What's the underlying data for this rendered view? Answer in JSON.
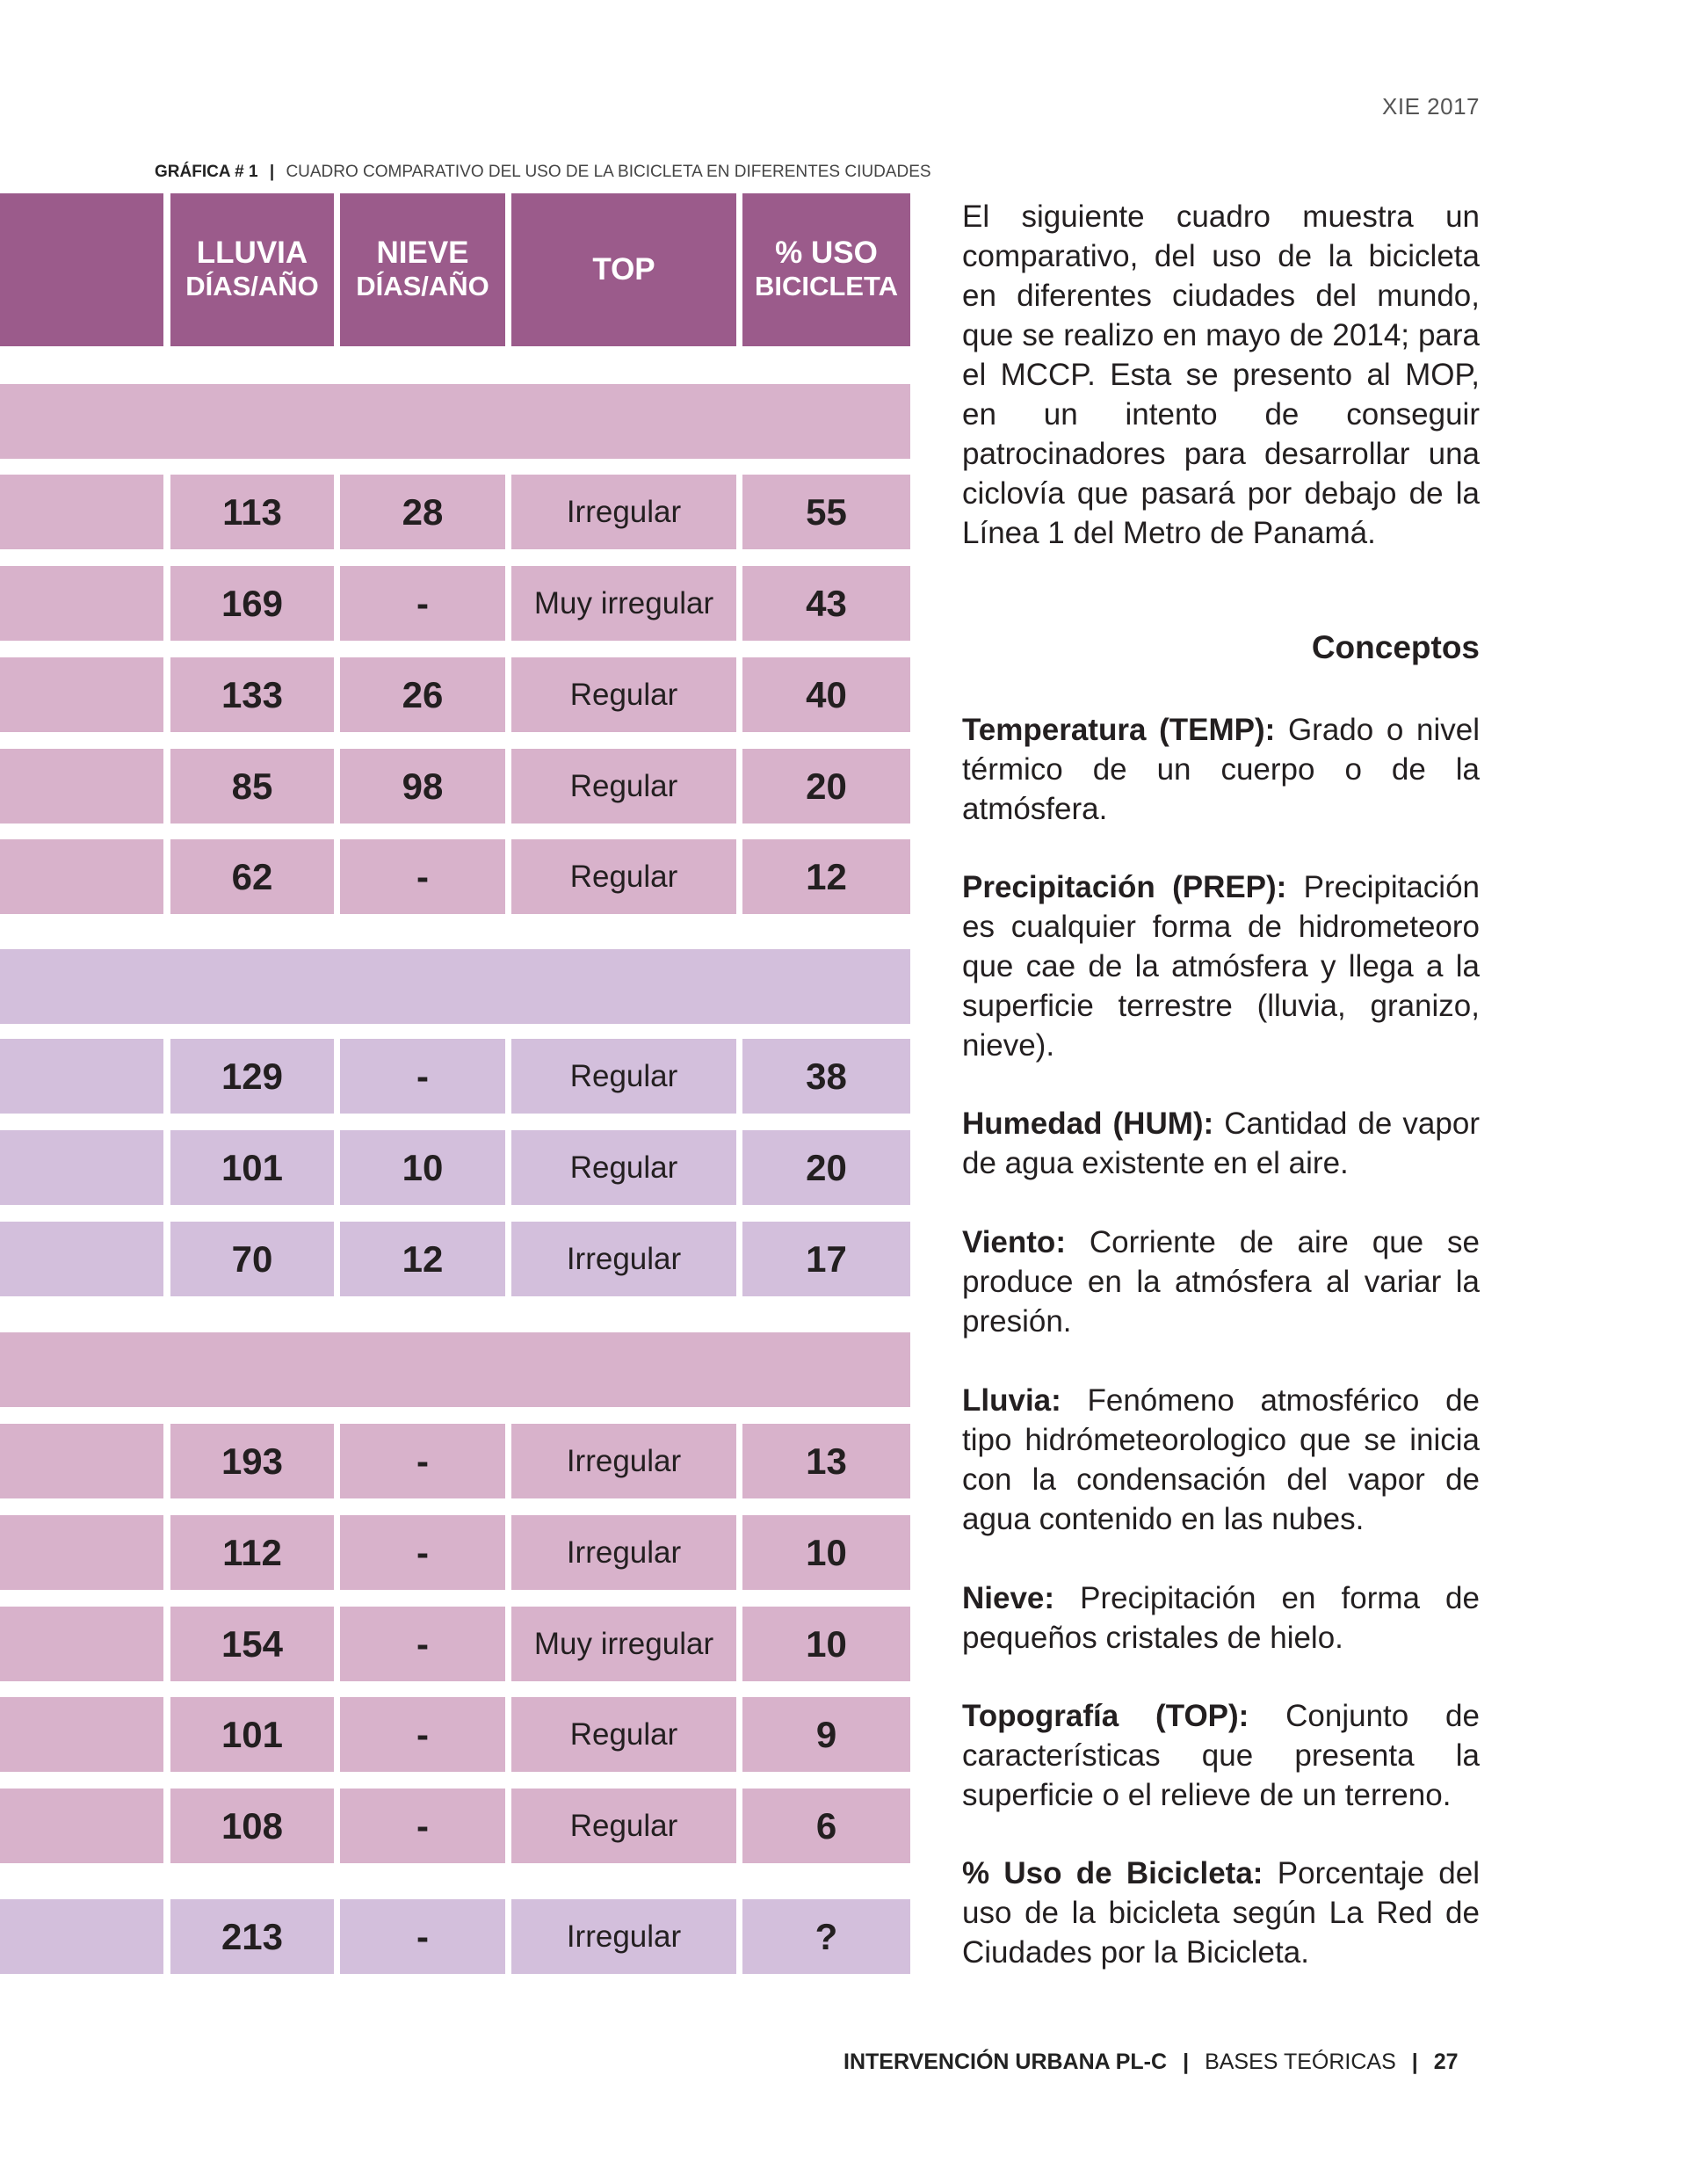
{
  "header": {
    "edition": "XIE 2017"
  },
  "caption": {
    "label": "GRÁFICA # 1",
    "separator": "|",
    "title": "CUADRO COMPARATIVO DEL USO DE LA BICICLETA EN DIFERENTES CIUDADES"
  },
  "table": {
    "columns": [
      {
        "line1": "",
        "line2": ""
      },
      {
        "line1": "LLUVIA",
        "line2": "DÍAS/AÑO"
      },
      {
        "line1": "NIEVE",
        "line2": "DÍAS/AÑO"
      },
      {
        "line1": "TOP",
        "line2": ""
      },
      {
        "line1": "% USO",
        "line2": "BICICLETA"
      }
    ],
    "colors": {
      "header": "#9b5b8b",
      "pink": "#d8b2cb",
      "lavender": "#d3bfdc"
    },
    "groups": [
      {
        "color": "pink",
        "has_bar": true,
        "rows": [
          {
            "city": "",
            "lluvia": "113",
            "nieve": "28",
            "top": "Irregular",
            "uso": "55"
          },
          {
            "city": "",
            "lluvia": "169",
            "nieve": "-",
            "top": "Muy irregular",
            "uso": "43"
          },
          {
            "city": "",
            "lluvia": "133",
            "nieve": "26",
            "top": "Regular",
            "uso": "40"
          },
          {
            "city": "",
            "lluvia": "85",
            "nieve": "98",
            "top": "Regular",
            "uso": "20"
          },
          {
            "city": "",
            "lluvia": "62",
            "nieve": "-",
            "top": "Regular",
            "uso": "12"
          }
        ]
      },
      {
        "color": "lavender",
        "has_bar": true,
        "rows": [
          {
            "city": "",
            "lluvia": "129",
            "nieve": "-",
            "top": "Regular",
            "uso": "38"
          },
          {
            "city": "",
            "lluvia": "101",
            "nieve": "10",
            "top": "Regular",
            "uso": "20"
          },
          {
            "city": "",
            "lluvia": "70",
            "nieve": "12",
            "top": "Irregular",
            "uso": "17"
          }
        ]
      },
      {
        "color": "pink",
        "has_bar": true,
        "rows": [
          {
            "city": "",
            "lluvia": "193",
            "nieve": "-",
            "top": "Irregular",
            "uso": "13"
          },
          {
            "city": "",
            "lluvia": "112",
            "nieve": "-",
            "top": "Irregular",
            "uso": "10"
          },
          {
            "city": "",
            "lluvia": "154",
            "nieve": "-",
            "top": "Muy irregular",
            "uso": "10"
          },
          {
            "city": "",
            "lluvia": "101",
            "nieve": "-",
            "top": "Regular",
            "uso": "9"
          },
          {
            "city": "",
            "lluvia": "108",
            "nieve": "-",
            "top": "Regular",
            "uso": "6"
          }
        ]
      },
      {
        "color": "lavender",
        "has_bar": false,
        "rows": [
          {
            "city": "",
            "lluvia": "213",
            "nieve": "-",
            "top": "Irregular",
            "uso": "?"
          }
        ]
      }
    ]
  },
  "intro": "El siguiente cuadro muestra un comparativo, del uso de la bicicleta en diferentes ciudades del mundo, que se realizo en mayo de 2014; para el MCCP. Esta se presento al MOP, en un intento de conseguir patrocinadores para desarrollar una ciclovía que pasará por debajo de la Línea 1 del Metro de Panamá.",
  "concepts": {
    "title": "Conceptos",
    "items": [
      {
        "term": "Temperatura (TEMP):",
        "definition": "Grado o nivel térmico de un cuerpo o de la atmósfera."
      },
      {
        "term": "Precipitación (PREP):",
        "definition": "Precipitación es cualquier forma de hidrometeoro que cae de la atmósfera y llega a la superficie terrestre (lluvia, granizo, nieve)."
      },
      {
        "term": "Humedad (HUM):",
        "definition": "Cantidad de vapor de agua existente en el aire."
      },
      {
        "term": "Viento:",
        "definition": "Corriente de aire que se produce en la atmósfera al variar la presión."
      },
      {
        "term": "Lluvia:",
        "definition": "Fenómeno atmosférico de tipo hidrómeteorologico que se inicia con la condensación del vapor de agua contenido en las nubes."
      },
      {
        "term": "Nieve:",
        "definition": "Precipitación en forma de pequeños cristales de hielo."
      },
      {
        "term": "Topografía (TOP):",
        "definition": "Conjunto de características que presenta la superficie o el relieve de un terreno."
      },
      {
        "term": "% Uso de Bicicleta:",
        "definition": "Porcentaje del uso de la bicicleta según La Red de Ciudades por la Bicicleta."
      }
    ]
  },
  "footer": {
    "publication": "INTERVENCIÓN URBANA PL-C",
    "sep": "|",
    "section": "BASES TEÓRICAS",
    "page": "27"
  }
}
